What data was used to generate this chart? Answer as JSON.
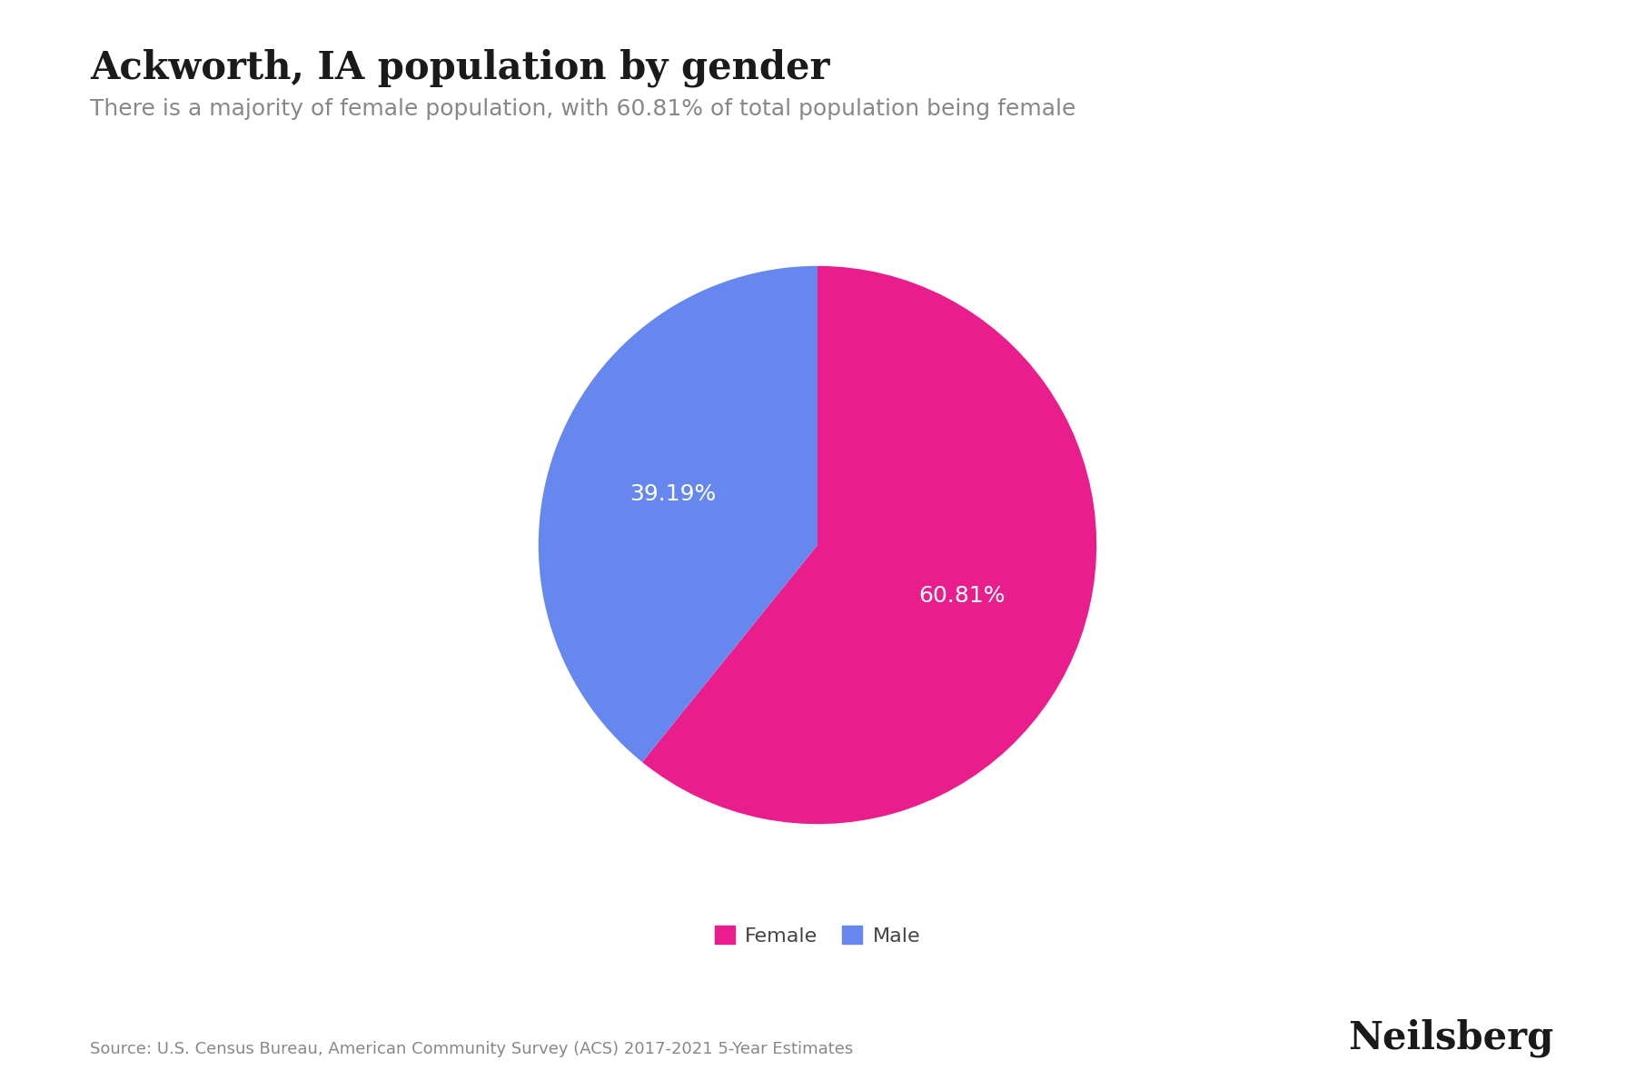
{
  "title": "Ackworth, IA population by gender",
  "subtitle": "There is a majority of female population, with 60.81% of total population being female",
  "slices": [
    60.81,
    39.19
  ],
  "labels": [
    "Female",
    "Male"
  ],
  "colors": [
    "#e91e8c",
    "#6688ee"
  ],
  "pct_labels": [
    "60.81%",
    "39.19%"
  ],
  "pct_label_colors": [
    "#ffffff",
    "#ffffff"
  ],
  "source": "Source: U.S. Census Bureau, American Community Survey (ACS) 2017-2021 5-Year Estimates",
  "brand": "Neilsberg",
  "background_color": "#ffffff",
  "title_fontsize": 30,
  "subtitle_fontsize": 18,
  "source_fontsize": 13,
  "brand_fontsize": 30,
  "legend_fontsize": 16,
  "pct_fontsize": 18,
  "start_angle": 90
}
